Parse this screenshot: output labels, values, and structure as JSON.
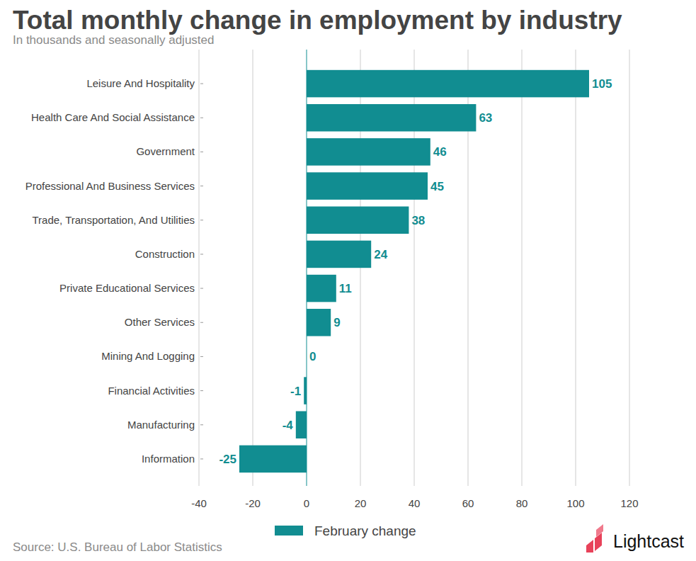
{
  "chart_data": {
    "type": "bar",
    "title": "Total monthly change in employment by industry",
    "subtitle": "In thousands and seasonally adjusted",
    "source": "Source: U.S. Bureau of Labor Statistics",
    "logo_text": "Lightcast",
    "orientation": "horizontal",
    "categories": [
      "Leisure And Hospitality",
      "Health Care And Social Assistance",
      "Government",
      "Professional And Business Services",
      "Trade, Transportation, And Utilities",
      "Construction",
      "Private Educational Services",
      "Other Services",
      "Mining And Logging",
      "Financial Activities",
      "Manufacturing",
      "Information"
    ],
    "series": [
      {
        "name": "February change",
        "color": "#118d91",
        "values": [
          105,
          63,
          46,
          45,
          38,
          24,
          11,
          9,
          0,
          -1,
          -4,
          -25
        ]
      }
    ],
    "xlim": [
      -40,
      120
    ],
    "xticks": [
      -40,
      -20,
      0,
      20,
      40,
      60,
      80,
      100,
      120
    ],
    "grid": true,
    "data_labels": true,
    "legend": "bottom"
  }
}
